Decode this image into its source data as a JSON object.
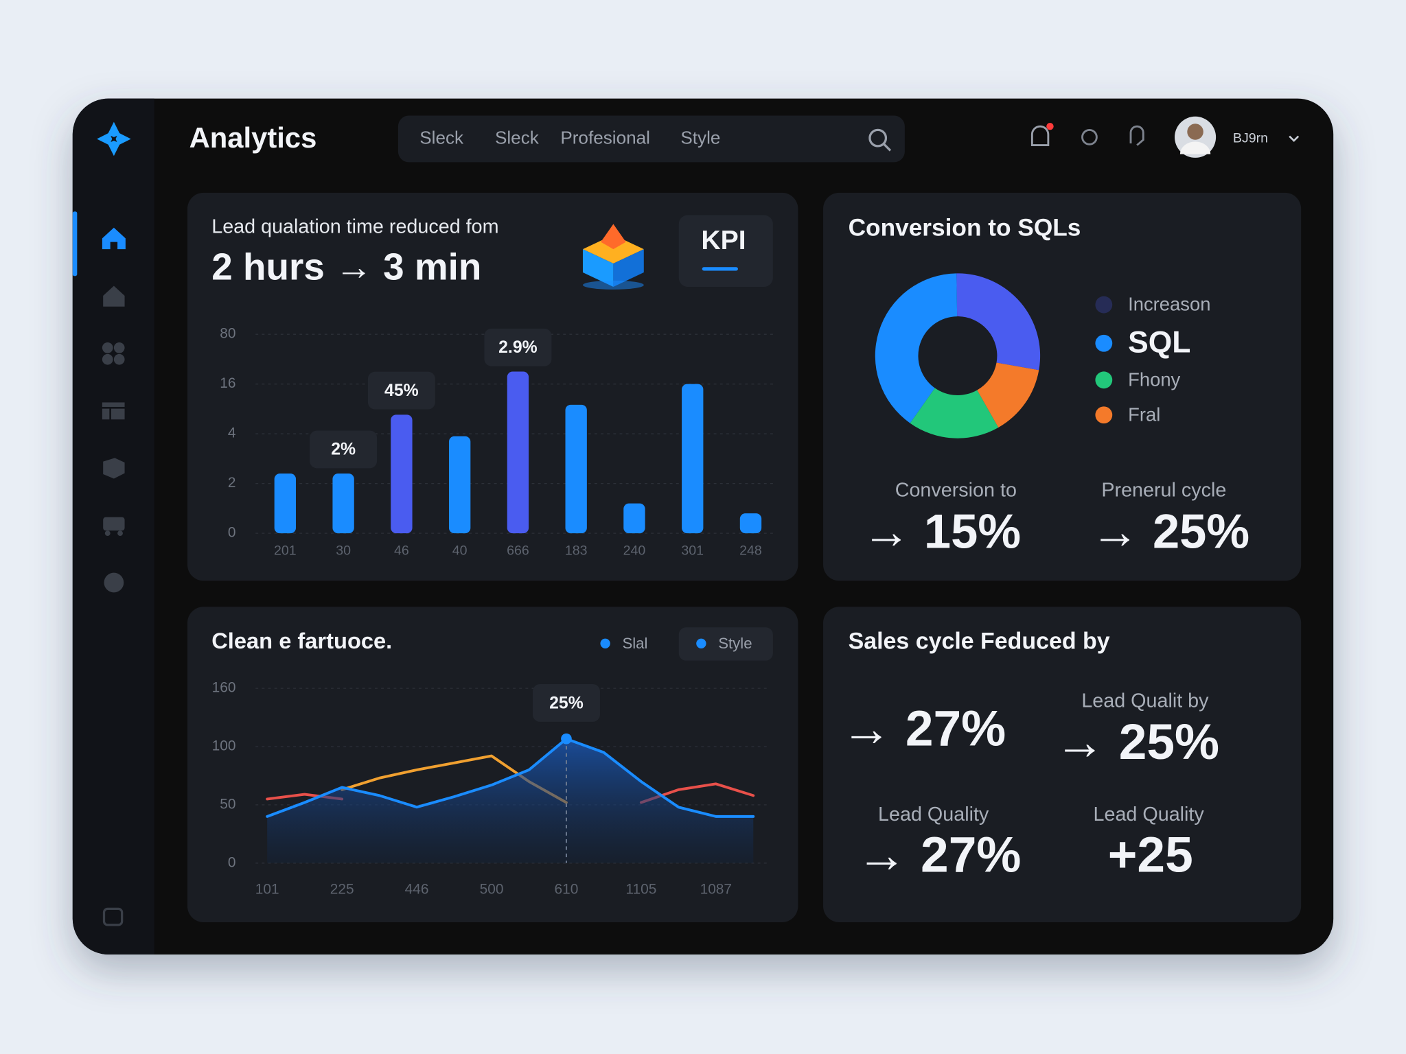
{
  "header": {
    "title": "Analytics",
    "tabs": [
      "Sleck",
      "Sleck",
      "Profesional",
      "Style"
    ],
    "user": "BJ9rn"
  },
  "kpi_card": {
    "caption": "Lead qualation time reduced fom",
    "headline": "2 hurs → 3 min",
    "badge": "KPI"
  },
  "conversion_card": {
    "title": "Conversion to SQLs",
    "stats": [
      {
        "label": "Conversion to",
        "value": "→ 15%"
      },
      {
        "label": "Prenerul cycle",
        "value": "→ 25%"
      }
    ]
  },
  "trend_card": {
    "title": "Clean e fartuoce."
  },
  "sales_card": {
    "title": "Sales cycle Feduced by",
    "stats": [
      {
        "value": "→ 27%"
      },
      {
        "label": "Lead Qualit by",
        "value": "→ 25%"
      },
      {
        "label": "Lead Quality",
        "value": "→ 27%"
      },
      {
        "label": "Lead Quality",
        "value": "+25"
      }
    ]
  },
  "chart_data": [
    {
      "type": "bar",
      "categories": [
        "201",
        "30",
        "46",
        "40",
        "666",
        "183",
        "240",
        "301",
        "248"
      ],
      "values": [
        2.4,
        2.4,
        8.6,
        3.9,
        32,
        11,
        1.2,
        16,
        0.8
      ],
      "colors": [
        "#1a8cff",
        "#1a8cff",
        "#4a5cf0",
        "#1a8cff",
        "#4a5cf0",
        "#1a8cff",
        "#1a8cff",
        "#1a8cff",
        "#1a8cff"
      ],
      "ylim": [
        0,
        80
      ],
      "yticks": [
        0,
        2,
        4,
        16,
        80
      ],
      "grid": true,
      "annotations": [
        {
          "text": "2%",
          "category": "30"
        },
        {
          "text": "45%",
          "category": "46"
        },
        {
          "text": "2.9%",
          "category": "666"
        }
      ]
    },
    {
      "type": "line",
      "categories": [
        "101",
        null,
        "225",
        null,
        "446",
        null,
        "500",
        null,
        "610",
        null,
        "1105",
        null,
        "1087",
        null
      ],
      "series": [
        {
          "color": "#1a8cff",
          "area": true,
          "values": [
            40,
            52,
            65,
            58,
            48,
            57,
            67,
            80,
            108,
            95,
            70,
            48,
            40,
            40
          ]
        },
        {
          "color": "#f0a030",
          "values": [
            null,
            null,
            63,
            73,
            80,
            86,
            92,
            70,
            52,
            null,
            null,
            null,
            null,
            null
          ]
        },
        {
          "color": "#e8504a",
          "values": [
            55,
            59,
            55,
            null,
            null,
            null,
            null,
            null,
            null,
            null,
            52,
            63,
            68,
            58
          ]
        }
      ],
      "ylim": [
        0,
        160
      ],
      "yticks": [
        0,
        50,
        100,
        160
      ],
      "grid": true,
      "legend": [
        {
          "name": "Slal",
          "color": "#1a8cff"
        },
        {
          "name": "Style",
          "color": "#1a8cff"
        }
      ],
      "annotations": [
        {
          "text": "25%",
          "category": "610"
        }
      ]
    },
    {
      "type": "pie",
      "donut": true,
      "labels": [
        "Increason",
        "SQL",
        "Fhony",
        "Fral"
      ],
      "values": [
        28,
        40,
        18,
        14
      ],
      "colors": [
        "#4a5cf0",
        "#1a8cff",
        "#22c77a",
        "#f47a2a"
      ]
    }
  ]
}
